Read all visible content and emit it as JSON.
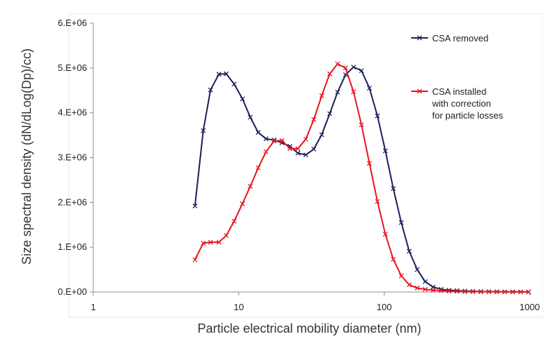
{
  "chart_data": {
    "type": "line",
    "title": "",
    "xlabel": "Particle electrical mobility diameter (nm)",
    "ylabel": "Size spectral density (dN/dLog(Dp)/cc)",
    "x_scale": "log",
    "xlim": [
      1,
      1000
    ],
    "ylim": [
      0,
      6000000
    ],
    "x_ticks": [
      1,
      10,
      100,
      1000
    ],
    "x_tick_labels": [
      "1",
      "10",
      "100",
      "1000"
    ],
    "y_ticks": [
      0,
      1000000,
      2000000,
      3000000,
      4000000,
      5000000,
      6000000
    ],
    "y_tick_labels": [
      "0.E+00",
      "1.E+06",
      "2.E+06",
      "3.E+06",
      "4.E+06",
      "5.E+06",
      "6.E+06"
    ],
    "grid": false,
    "legend_position": "right",
    "marker": "x",
    "series": [
      {
        "name": "CSA removed",
        "color": "#1a1f5c",
        "legend_lines": [
          "CSA removed"
        ],
        "points": [
          [
            5.0,
            1920000
          ],
          [
            5.7,
            3600000
          ],
          [
            6.4,
            4510000
          ],
          [
            7.3,
            4860000
          ],
          [
            8.2,
            4870000
          ],
          [
            9.3,
            4640000
          ],
          [
            10.6,
            4310000
          ],
          [
            12.0,
            3900000
          ],
          [
            13.6,
            3560000
          ],
          [
            15.4,
            3420000
          ],
          [
            17.5,
            3390000
          ],
          [
            19.8,
            3330000
          ],
          [
            22.5,
            3250000
          ],
          [
            25.5,
            3100000
          ],
          [
            28.9,
            3060000
          ],
          [
            32.8,
            3190000
          ],
          [
            37.2,
            3510000
          ],
          [
            42.2,
            3980000
          ],
          [
            47.8,
            4460000
          ],
          [
            54.2,
            4850000
          ],
          [
            61.5,
            5020000
          ],
          [
            69.8,
            4940000
          ],
          [
            79.1,
            4550000
          ],
          [
            89.8,
            3930000
          ],
          [
            101.8,
            3150000
          ],
          [
            115.5,
            2310000
          ],
          [
            131.0,
            1550000
          ],
          [
            148.6,
            910000
          ],
          [
            168.6,
            500000
          ],
          [
            191.2,
            230000
          ],
          [
            216.9,
            110000
          ],
          [
            246.0,
            60000
          ],
          [
            279.0,
            40000
          ],
          [
            316.5,
            30000
          ],
          [
            359.0,
            20000
          ],
          [
            407.2,
            15000
          ],
          [
            461.9,
            10000
          ],
          [
            523.9,
            8000
          ],
          [
            594.4,
            6000
          ],
          [
            674.0,
            5000
          ],
          [
            764.5,
            4000
          ],
          [
            867.0,
            3000
          ],
          [
            983.0,
            2000
          ]
        ]
      },
      {
        "name": "CSA installed with correction for particle losses",
        "color": "#e8141e",
        "legend_lines": [
          "CSA installed",
          "with correction",
          "for particle losses"
        ],
        "points": [
          [
            5.0,
            720000
          ],
          [
            5.7,
            1090000
          ],
          [
            6.4,
            1110000
          ],
          [
            7.3,
            1110000
          ],
          [
            8.2,
            1260000
          ],
          [
            9.3,
            1580000
          ],
          [
            10.6,
            1970000
          ],
          [
            12.0,
            2360000
          ],
          [
            13.6,
            2770000
          ],
          [
            15.4,
            3130000
          ],
          [
            17.5,
            3370000
          ],
          [
            19.8,
            3380000
          ],
          [
            22.5,
            3200000
          ],
          [
            25.5,
            3200000
          ],
          [
            28.9,
            3410000
          ],
          [
            32.8,
            3850000
          ],
          [
            37.2,
            4380000
          ],
          [
            42.2,
            4870000
          ],
          [
            47.8,
            5090000
          ],
          [
            54.2,
            5000000
          ],
          [
            61.5,
            4470000
          ],
          [
            69.8,
            3730000
          ],
          [
            79.1,
            2870000
          ],
          [
            89.8,
            2020000
          ],
          [
            101.8,
            1290000
          ],
          [
            115.5,
            730000
          ],
          [
            131.0,
            360000
          ],
          [
            148.6,
            160000
          ],
          [
            168.6,
            90000
          ],
          [
            191.2,
            60000
          ],
          [
            216.9,
            40000
          ],
          [
            246.0,
            30000
          ],
          [
            279.0,
            20000
          ],
          [
            316.5,
            15000
          ],
          [
            359.0,
            10000
          ],
          [
            407.2,
            8000
          ],
          [
            461.9,
            6000
          ],
          [
            523.9,
            5000
          ],
          [
            594.4,
            4000
          ],
          [
            674.0,
            3000
          ],
          [
            764.5,
            2000
          ],
          [
            867.0,
            2000
          ],
          [
            983.0,
            1000
          ]
        ]
      }
    ]
  }
}
